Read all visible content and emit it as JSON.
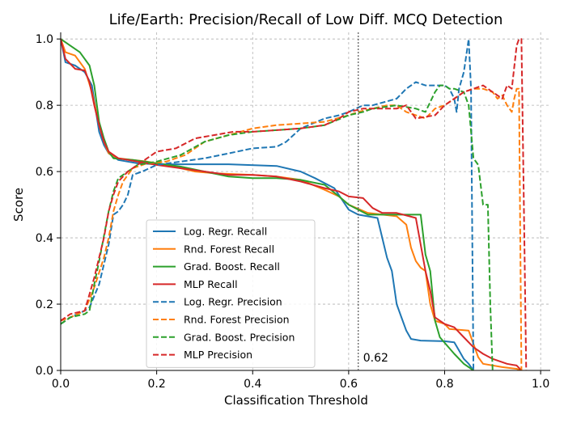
{
  "chart_data": {
    "type": "line",
    "title": "Life/Earth: Precision/Recall of Low Diff. MCQ Detection",
    "xlabel": "Classification Threshold",
    "ylabel": "Score",
    "xlim": [
      0.0,
      1.02
    ],
    "ylim": [
      0.0,
      1.02
    ],
    "x_ticks": [
      0.0,
      0.2,
      0.4,
      0.6,
      0.8,
      1.0
    ],
    "x_tick_labels": [
      "0.0",
      "0.2",
      "0.4",
      "0.6",
      "0.8",
      "1.0"
    ],
    "y_ticks": [
      0.0,
      0.2,
      0.4,
      0.6,
      0.8,
      1.0
    ],
    "y_tick_labels": [
      "0.0",
      "0.2",
      "0.4",
      "0.6",
      "0.8",
      "1.0"
    ],
    "grid": true,
    "legend_position": "lower-left-center",
    "threshold_line": {
      "x": 0.62,
      "label": "0.62",
      "color": "#555555"
    },
    "series": [
      {
        "name": "Log. Regr. Recall",
        "color": "#1f77b4",
        "dash": "solid",
        "points": [
          [
            0.0,
            1.0
          ],
          [
            0.01,
            0.93
          ],
          [
            0.03,
            0.92
          ],
          [
            0.05,
            0.9
          ],
          [
            0.065,
            0.86
          ],
          [
            0.08,
            0.72
          ],
          [
            0.09,
            0.68
          ],
          [
            0.1,
            0.655
          ],
          [
            0.12,
            0.635
          ],
          [
            0.16,
            0.625
          ],
          [
            0.2,
            0.622
          ],
          [
            0.25,
            0.622
          ],
          [
            0.35,
            0.622
          ],
          [
            0.45,
            0.617
          ],
          [
            0.5,
            0.6
          ],
          [
            0.53,
            0.58
          ],
          [
            0.57,
            0.55
          ],
          [
            0.6,
            0.485
          ],
          [
            0.62,
            0.47
          ],
          [
            0.66,
            0.46
          ],
          [
            0.67,
            0.4
          ],
          [
            0.68,
            0.34
          ],
          [
            0.69,
            0.3
          ],
          [
            0.7,
            0.2
          ],
          [
            0.71,
            0.16
          ],
          [
            0.72,
            0.12
          ],
          [
            0.73,
            0.095
          ],
          [
            0.75,
            0.09
          ],
          [
            0.8,
            0.088
          ],
          [
            0.82,
            0.085
          ],
          [
            0.83,
            0.06
          ],
          [
            0.84,
            0.035
          ],
          [
            0.85,
            0.02
          ],
          [
            0.86,
            0.0
          ]
        ]
      },
      {
        "name": "Rnd. Forest Recall",
        "color": "#ff7f0e",
        "dash": "solid",
        "points": [
          [
            0.0,
            1.0
          ],
          [
            0.01,
            0.96
          ],
          [
            0.03,
            0.95
          ],
          [
            0.05,
            0.91
          ],
          [
            0.065,
            0.84
          ],
          [
            0.08,
            0.74
          ],
          [
            0.09,
            0.69
          ],
          [
            0.1,
            0.655
          ],
          [
            0.12,
            0.64
          ],
          [
            0.15,
            0.635
          ],
          [
            0.18,
            0.63
          ],
          [
            0.22,
            0.62
          ],
          [
            0.28,
            0.6
          ],
          [
            0.32,
            0.595
          ],
          [
            0.4,
            0.59
          ],
          [
            0.45,
            0.585
          ],
          [
            0.5,
            0.575
          ],
          [
            0.55,
            0.545
          ],
          [
            0.58,
            0.525
          ],
          [
            0.6,
            0.5
          ],
          [
            0.64,
            0.475
          ],
          [
            0.7,
            0.465
          ],
          [
            0.72,
            0.44
          ],
          [
            0.73,
            0.37
          ],
          [
            0.74,
            0.33
          ],
          [
            0.75,
            0.31
          ],
          [
            0.76,
            0.3
          ],
          [
            0.77,
            0.2
          ],
          [
            0.78,
            0.15
          ],
          [
            0.8,
            0.14
          ],
          [
            0.81,
            0.125
          ],
          [
            0.85,
            0.12
          ],
          [
            0.87,
            0.04
          ],
          [
            0.88,
            0.02
          ],
          [
            0.92,
            0.01
          ],
          [
            0.95,
            0.005
          ],
          [
            0.96,
            0.0
          ]
        ]
      },
      {
        "name": "Grad. Boost. Recall",
        "color": "#2ca02c",
        "dash": "solid",
        "points": [
          [
            0.0,
            1.0
          ],
          [
            0.02,
            0.98
          ],
          [
            0.04,
            0.96
          ],
          [
            0.06,
            0.92
          ],
          [
            0.07,
            0.86
          ],
          [
            0.08,
            0.75
          ],
          [
            0.09,
            0.7
          ],
          [
            0.1,
            0.66
          ],
          [
            0.11,
            0.64
          ],
          [
            0.15,
            0.635
          ],
          [
            0.2,
            0.625
          ],
          [
            0.25,
            0.615
          ],
          [
            0.3,
            0.6
          ],
          [
            0.35,
            0.585
          ],
          [
            0.4,
            0.58
          ],
          [
            0.45,
            0.58
          ],
          [
            0.5,
            0.575
          ],
          [
            0.55,
            0.56
          ],
          [
            0.58,
            0.525
          ],
          [
            0.6,
            0.5
          ],
          [
            0.64,
            0.47
          ],
          [
            0.7,
            0.47
          ],
          [
            0.75,
            0.47
          ],
          [
            0.76,
            0.35
          ],
          [
            0.77,
            0.3
          ],
          [
            0.78,
            0.15
          ],
          [
            0.79,
            0.1
          ],
          [
            0.82,
            0.05
          ],
          [
            0.84,
            0.02
          ],
          [
            0.86,
            0.0
          ]
        ]
      },
      {
        "name": "MLP Recall",
        "color": "#d62728",
        "dash": "solid",
        "points": [
          [
            0.0,
            1.0
          ],
          [
            0.01,
            0.94
          ],
          [
            0.03,
            0.91
          ],
          [
            0.05,
            0.905
          ],
          [
            0.06,
            0.87
          ],
          [
            0.07,
            0.8
          ],
          [
            0.08,
            0.74
          ],
          [
            0.09,
            0.69
          ],
          [
            0.1,
            0.66
          ],
          [
            0.12,
            0.64
          ],
          [
            0.16,
            0.63
          ],
          [
            0.2,
            0.62
          ],
          [
            0.25,
            0.61
          ],
          [
            0.3,
            0.6
          ],
          [
            0.35,
            0.59
          ],
          [
            0.4,
            0.59
          ],
          [
            0.45,
            0.585
          ],
          [
            0.5,
            0.57
          ],
          [
            0.55,
            0.55
          ],
          [
            0.58,
            0.54
          ],
          [
            0.6,
            0.525
          ],
          [
            0.63,
            0.52
          ],
          [
            0.65,
            0.49
          ],
          [
            0.67,
            0.475
          ],
          [
            0.7,
            0.475
          ],
          [
            0.74,
            0.46
          ],
          [
            0.76,
            0.3
          ],
          [
            0.77,
            0.24
          ],
          [
            0.78,
            0.16
          ],
          [
            0.8,
            0.14
          ],
          [
            0.82,
            0.13
          ],
          [
            0.84,
            0.1
          ],
          [
            0.86,
            0.07
          ],
          [
            0.88,
            0.05
          ],
          [
            0.9,
            0.035
          ],
          [
            0.93,
            0.02
          ],
          [
            0.95,
            0.015
          ],
          [
            0.96,
            0.0
          ]
        ]
      },
      {
        "name": "Log. Regr. Precision",
        "color": "#1f77b4",
        "dash": "dashed",
        "points": [
          [
            0.0,
            0.14
          ],
          [
            0.02,
            0.16
          ],
          [
            0.05,
            0.18
          ],
          [
            0.06,
            0.19
          ],
          [
            0.08,
            0.26
          ],
          [
            0.1,
            0.38
          ],
          [
            0.11,
            0.47
          ],
          [
            0.12,
            0.48
          ],
          [
            0.13,
            0.5
          ],
          [
            0.14,
            0.53
          ],
          [
            0.15,
            0.59
          ],
          [
            0.17,
            0.6
          ],
          [
            0.2,
            0.62
          ],
          [
            0.25,
            0.63
          ],
          [
            0.3,
            0.64
          ],
          [
            0.35,
            0.655
          ],
          [
            0.4,
            0.67
          ],
          [
            0.45,
            0.675
          ],
          [
            0.47,
            0.69
          ],
          [
            0.5,
            0.73
          ],
          [
            0.55,
            0.76
          ],
          [
            0.58,
            0.77
          ],
          [
            0.6,
            0.78
          ],
          [
            0.63,
            0.8
          ],
          [
            0.65,
            0.8
          ],
          [
            0.7,
            0.82
          ],
          [
            0.72,
            0.85
          ],
          [
            0.74,
            0.87
          ],
          [
            0.76,
            0.86
          ],
          [
            0.8,
            0.86
          ],
          [
            0.81,
            0.85
          ],
          [
            0.82,
            0.82
          ],
          [
            0.825,
            0.78
          ],
          [
            0.83,
            0.85
          ],
          [
            0.84,
            0.9
          ],
          [
            0.85,
            1.0
          ],
          [
            0.855,
            0.85
          ],
          [
            0.857,
            0.5
          ],
          [
            0.86,
            0.0
          ]
        ]
      },
      {
        "name": "Rnd. Forest Precision",
        "color": "#ff7f0e",
        "dash": "dashed",
        "points": [
          [
            0.0,
            0.15
          ],
          [
            0.02,
            0.16
          ],
          [
            0.05,
            0.18
          ],
          [
            0.07,
            0.25
          ],
          [
            0.09,
            0.34
          ],
          [
            0.1,
            0.4
          ],
          [
            0.11,
            0.48
          ],
          [
            0.12,
            0.53
          ],
          [
            0.13,
            0.57
          ],
          [
            0.15,
            0.61
          ],
          [
            0.18,
            0.625
          ],
          [
            0.22,
            0.63
          ],
          [
            0.26,
            0.65
          ],
          [
            0.3,
            0.69
          ],
          [
            0.35,
            0.71
          ],
          [
            0.4,
            0.73
          ],
          [
            0.45,
            0.74
          ],
          [
            0.5,
            0.745
          ],
          [
            0.55,
            0.75
          ],
          [
            0.6,
            0.77
          ],
          [
            0.62,
            0.78
          ],
          [
            0.65,
            0.79
          ],
          [
            0.68,
            0.8
          ],
          [
            0.7,
            0.8
          ],
          [
            0.72,
            0.78
          ],
          [
            0.74,
            0.77
          ],
          [
            0.76,
            0.76
          ],
          [
            0.78,
            0.79
          ],
          [
            0.8,
            0.8
          ],
          [
            0.82,
            0.82
          ],
          [
            0.84,
            0.84
          ],
          [
            0.86,
            0.85
          ],
          [
            0.88,
            0.85
          ],
          [
            0.9,
            0.84
          ],
          [
            0.91,
            0.82
          ],
          [
            0.92,
            0.83
          ],
          [
            0.93,
            0.8
          ],
          [
            0.94,
            0.78
          ],
          [
            0.945,
            0.82
          ],
          [
            0.95,
            0.85
          ],
          [
            0.955,
            0.85
          ],
          [
            0.957,
            0.5
          ],
          [
            0.96,
            0.0
          ]
        ]
      },
      {
        "name": "Grad. Boost. Precision",
        "color": "#2ca02c",
        "dash": "dashed",
        "points": [
          [
            0.0,
            0.14
          ],
          [
            0.02,
            0.16
          ],
          [
            0.05,
            0.17
          ],
          [
            0.06,
            0.18
          ],
          [
            0.07,
            0.26
          ],
          [
            0.08,
            0.33
          ],
          [
            0.1,
            0.48
          ],
          [
            0.11,
            0.54
          ],
          [
            0.12,
            0.58
          ],
          [
            0.14,
            0.6
          ],
          [
            0.16,
            0.62
          ],
          [
            0.2,
            0.63
          ],
          [
            0.25,
            0.65
          ],
          [
            0.3,
            0.69
          ],
          [
            0.35,
            0.71
          ],
          [
            0.4,
            0.72
          ],
          [
            0.45,
            0.725
          ],
          [
            0.5,
            0.73
          ],
          [
            0.55,
            0.74
          ],
          [
            0.6,
            0.77
          ],
          [
            0.63,
            0.78
          ],
          [
            0.65,
            0.79
          ],
          [
            0.7,
            0.8
          ],
          [
            0.74,
            0.79
          ],
          [
            0.76,
            0.78
          ],
          [
            0.78,
            0.84
          ],
          [
            0.79,
            0.86
          ],
          [
            0.8,
            0.86
          ],
          [
            0.81,
            0.85
          ],
          [
            0.82,
            0.85
          ],
          [
            0.84,
            0.84
          ],
          [
            0.85,
            0.8
          ],
          [
            0.86,
            0.64
          ],
          [
            0.87,
            0.62
          ],
          [
            0.88,
            0.5
          ],
          [
            0.89,
            0.5
          ],
          [
            0.895,
            0.2
          ],
          [
            0.9,
            0.0
          ]
        ]
      },
      {
        "name": "MLP Precision",
        "color": "#d62728",
        "dash": "dashed",
        "points": [
          [
            0.0,
            0.15
          ],
          [
            0.02,
            0.17
          ],
          [
            0.05,
            0.18
          ],
          [
            0.07,
            0.28
          ],
          [
            0.09,
            0.4
          ],
          [
            0.1,
            0.48
          ],
          [
            0.11,
            0.53
          ],
          [
            0.12,
            0.57
          ],
          [
            0.14,
            0.6
          ],
          [
            0.16,
            0.62
          ],
          [
            0.18,
            0.64
          ],
          [
            0.2,
            0.66
          ],
          [
            0.24,
            0.67
          ],
          [
            0.28,
            0.7
          ],
          [
            0.32,
            0.71
          ],
          [
            0.36,
            0.72
          ],
          [
            0.4,
            0.72
          ],
          [
            0.45,
            0.725
          ],
          [
            0.5,
            0.73
          ],
          [
            0.55,
            0.74
          ],
          [
            0.58,
            0.76
          ],
          [
            0.6,
            0.78
          ],
          [
            0.63,
            0.79
          ],
          [
            0.65,
            0.79
          ],
          [
            0.68,
            0.79
          ],
          [
            0.7,
            0.79
          ],
          [
            0.72,
            0.8
          ],
          [
            0.74,
            0.76
          ],
          [
            0.78,
            0.77
          ],
          [
            0.8,
            0.8
          ],
          [
            0.82,
            0.82
          ],
          [
            0.84,
            0.84
          ],
          [
            0.86,
            0.85
          ],
          [
            0.88,
            0.86
          ],
          [
            0.9,
            0.84
          ],
          [
            0.92,
            0.82
          ],
          [
            0.93,
            0.86
          ],
          [
            0.94,
            0.85
          ],
          [
            0.95,
            0.98
          ],
          [
            0.955,
            1.0
          ],
          [
            0.96,
            1.0
          ],
          [
            0.965,
            0.5
          ],
          [
            0.97,
            0.0
          ]
        ]
      }
    ]
  }
}
